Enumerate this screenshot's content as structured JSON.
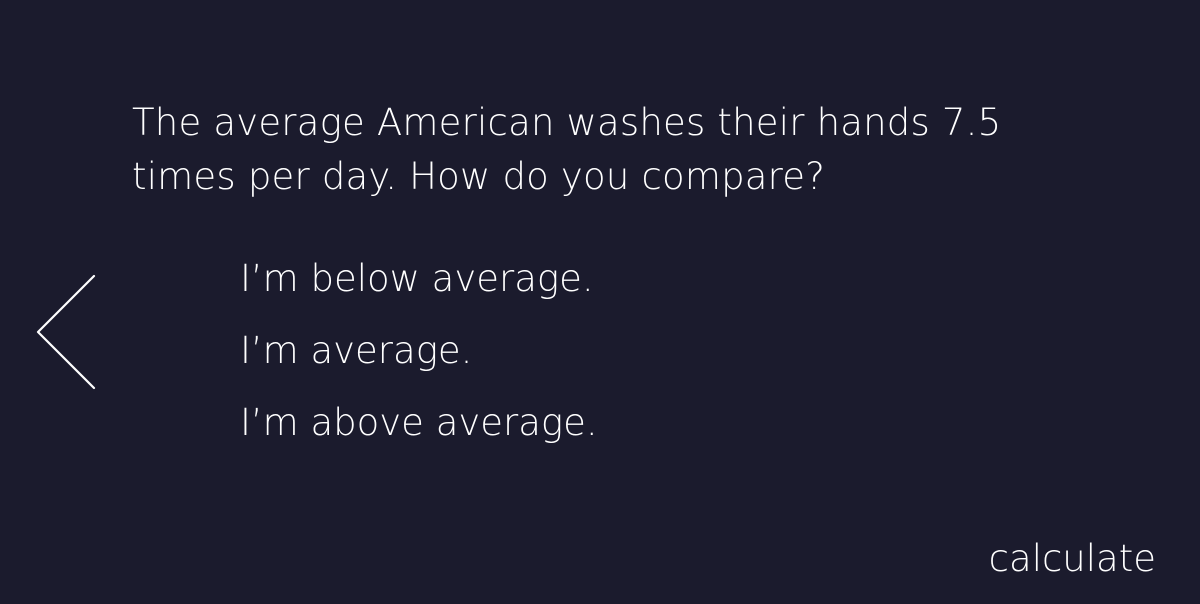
{
  "question": {
    "text": "The average American washes their hands 7.5 times per day. How do you compare?"
  },
  "options": [
    {
      "label": "I’m below average."
    },
    {
      "label": "I’m average."
    },
    {
      "label": "I’m above average."
    }
  ],
  "navigation": {
    "back_icon": "chevron-left-icon"
  },
  "actions": {
    "calculate_label": "calculate"
  },
  "colors": {
    "background": "#1b1b2d",
    "text": "#ffffff"
  }
}
